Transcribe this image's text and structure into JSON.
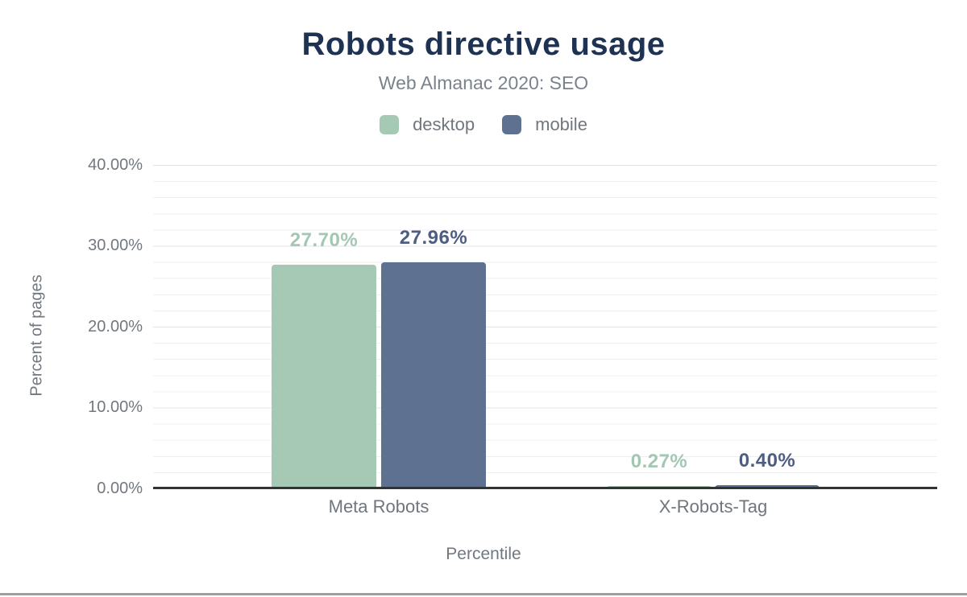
{
  "header": {
    "title": "Robots directive usage",
    "subtitle": "Web Almanac 2020: SEO"
  },
  "legend": {
    "items": [
      {
        "label": "desktop",
        "color": "#a6c9b6"
      },
      {
        "label": "mobile",
        "color": "#5f7190"
      }
    ]
  },
  "colors": {
    "title": "#1e3253",
    "axis_line": "#333333",
    "text_gray": "#72787f",
    "gridline_minor": "#efefef",
    "gridline_major": "#e3e3e3",
    "bottom_border": "#9b9fa3"
  },
  "chart_data": {
    "type": "bar",
    "title": "Robots directive usage",
    "subtitle": "Web Almanac 2020: SEO",
    "xlabel": "Percentile",
    "ylabel": "Percent of pages",
    "categories": [
      "Meta Robots",
      "X-Robots-Tag"
    ],
    "series": [
      {
        "name": "desktop",
        "color": "#a6c9b6",
        "label_color": "#a3c7b3",
        "values": [
          27.7,
          0.27
        ],
        "value_labels": [
          "27.70%",
          "0.27%"
        ]
      },
      {
        "name": "mobile",
        "color": "#5f7190",
        "label_color": "#4d5e80",
        "values": [
          27.96,
          0.4
        ],
        "value_labels": [
          "27.96%",
          "0.40%"
        ]
      }
    ],
    "ylim": [
      0,
      40
    ],
    "yticks_top_to_bottom": [
      "40.00%",
      "30.00%",
      "20.00%",
      "10.00%",
      "0.00%"
    ],
    "grid": {
      "minor_step_percent": 2,
      "major_step_percent": 10,
      "visible": true
    },
    "legend_position": "top"
  }
}
